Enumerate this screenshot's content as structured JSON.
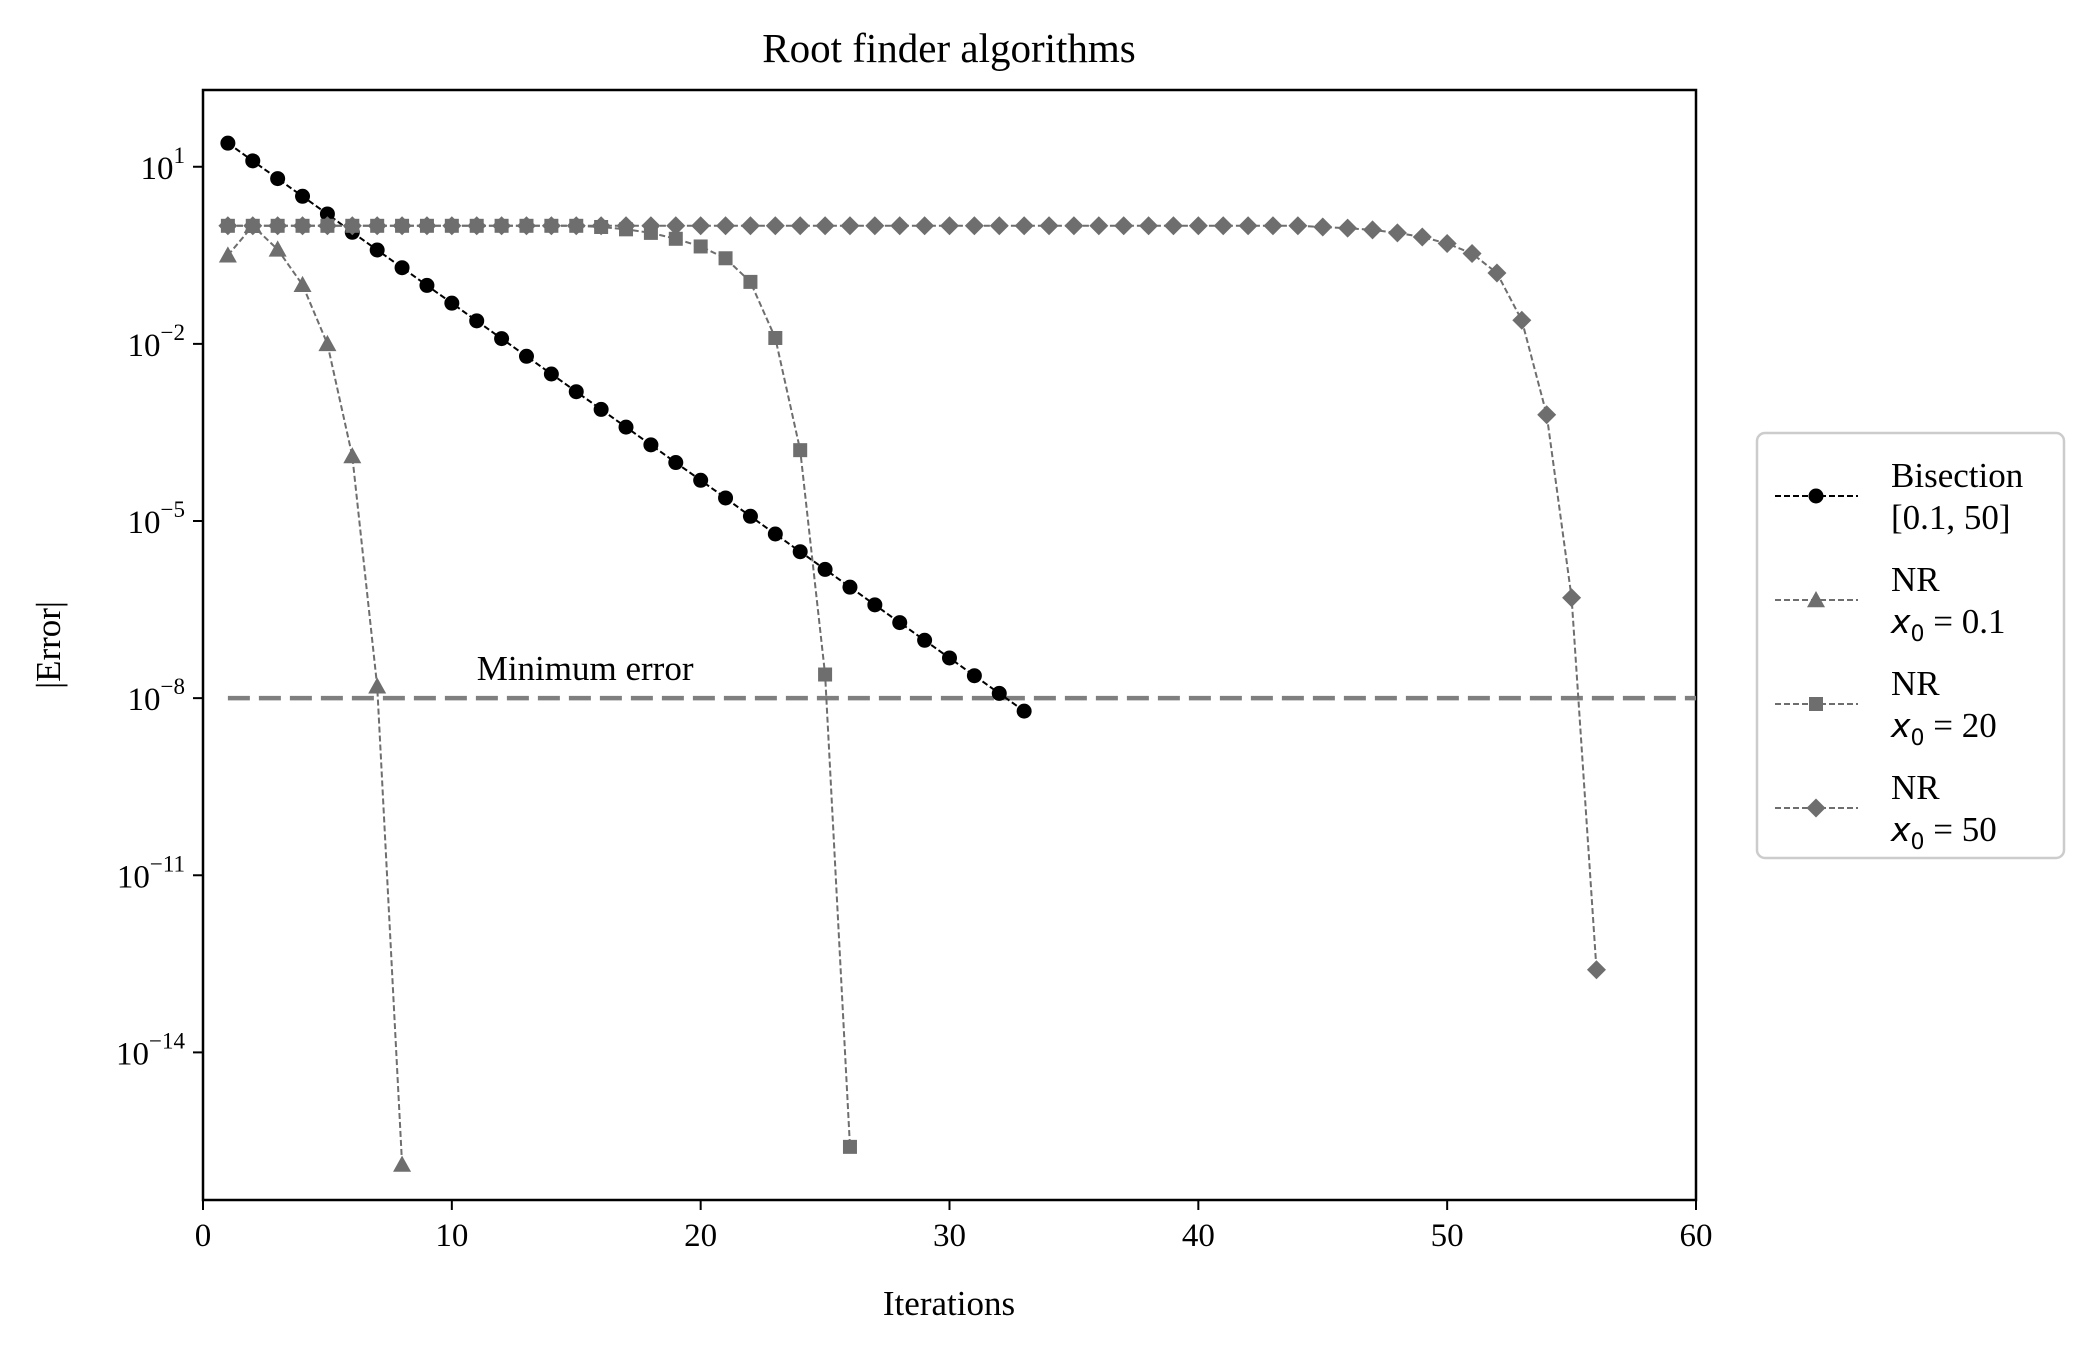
{
  "chart_data": {
    "type": "line",
    "title": "Root finder algorithms",
    "xlabel": "Iterations",
    "ylabel": "|Error|",
    "xlim": [
      0,
      60
    ],
    "ylim_log10": [
      -16.5,
      2.3
    ],
    "yscale": "log",
    "x_ticks": [
      0,
      10,
      20,
      30,
      40,
      50,
      60
    ],
    "y_ticks": [
      {
        "exp": 1,
        "label": "10",
        "sup": "1"
      },
      {
        "exp": -2,
        "label": "10",
        "sup": "−2"
      },
      {
        "exp": -5,
        "label": "10",
        "sup": "−5"
      },
      {
        "exp": -8,
        "label": "10",
        "sup": "−8"
      },
      {
        "exp": -11,
        "label": "10",
        "sup": "−11"
      },
      {
        "exp": -14,
        "label": "10",
        "sup": "−14"
      }
    ],
    "grid": false,
    "legend_position": "outside-right",
    "reference_line": {
      "y_exp": -8,
      "label": "Minimum error",
      "color": "#7f7f7f"
    },
    "series": [
      {
        "name_line1": "Bisection",
        "name_line2": "[0.1, 50]",
        "marker": "circle",
        "color": "#000000",
        "x": [
          1,
          2,
          3,
          4,
          5,
          6,
          7,
          8,
          9,
          10,
          11,
          12,
          13,
          14,
          15,
          16,
          17,
          18,
          19,
          20,
          21,
          22,
          23,
          24,
          25,
          26,
          27,
          28,
          29,
          30,
          31,
          32,
          33
        ],
        "log10_y": [
          1.4,
          1.1,
          0.8,
          0.5,
          0.2,
          -0.11,
          -0.41,
          -0.71,
          -1.01,
          -1.31,
          -1.61,
          -1.91,
          -2.21,
          -2.51,
          -2.81,
          -3.11,
          -3.41,
          -3.71,
          -4.01,
          -4.31,
          -4.61,
          -4.92,
          -5.22,
          -5.52,
          -5.82,
          -6.12,
          -6.42,
          -6.72,
          -7.02,
          -7.32,
          -7.62,
          -7.92,
          -8.22
        ]
      },
      {
        "name_line1": "NR",
        "name_math": "x",
        "name_sub": "0",
        "name_value": " = 0.1",
        "marker": "triangle",
        "color": "#6e6e6e",
        "x": [
          1,
          2,
          3,
          4,
          5,
          6,
          7,
          8
        ],
        "log10_y": [
          -0.5,
          0.0,
          -0.4,
          -1.0,
          -2.0,
          -3.9,
          -7.8,
          -15.9
        ]
      },
      {
        "name_line1": "NR",
        "name_math": "x",
        "name_sub": "0",
        "name_value": " = 20",
        "marker": "square",
        "color": "#6e6e6e",
        "x": [
          1,
          2,
          3,
          4,
          5,
          6,
          7,
          8,
          9,
          10,
          11,
          12,
          13,
          14,
          15,
          16,
          17,
          18,
          19,
          20,
          21,
          22,
          23,
          24,
          25,
          26
        ],
        "log10_y": [
          0.0,
          0.0,
          0.0,
          0.0,
          0.0,
          0.0,
          0.0,
          0.0,
          0.0,
          0.0,
          0.0,
          0.0,
          0.0,
          0.0,
          0.0,
          -0.02,
          -0.06,
          -0.12,
          -0.22,
          -0.35,
          -0.55,
          -0.95,
          -1.9,
          -3.8,
          -7.6,
          -15.6
        ]
      },
      {
        "name_line1": "NR",
        "name_math": "x",
        "name_sub": "0",
        "name_value": " = 50",
        "marker": "diamond",
        "color": "#6e6e6e",
        "x": [
          1,
          2,
          3,
          4,
          5,
          6,
          7,
          8,
          9,
          10,
          11,
          12,
          13,
          14,
          15,
          16,
          17,
          18,
          19,
          20,
          21,
          22,
          23,
          24,
          25,
          26,
          27,
          28,
          29,
          30,
          31,
          32,
          33,
          34,
          35,
          36,
          37,
          38,
          39,
          40,
          41,
          42,
          43,
          44,
          45,
          46,
          47,
          48,
          49,
          50,
          51,
          52,
          53,
          54,
          55,
          56
        ],
        "log10_y": [
          0.0,
          0.0,
          0.0,
          0.0,
          0.0,
          0.0,
          0.0,
          0.0,
          0.0,
          0.0,
          0.0,
          0.0,
          0.0,
          0.0,
          0.0,
          0.0,
          0.0,
          0.0,
          0.0,
          0.0,
          0.0,
          0.0,
          0.0,
          0.0,
          0.0,
          0.0,
          0.0,
          0.0,
          0.0,
          0.0,
          0.0,
          0.0,
          0.0,
          0.0,
          0.0,
          0.0,
          0.0,
          0.0,
          0.0,
          0.0,
          0.0,
          0.0,
          0.0,
          0.0,
          -0.02,
          -0.04,
          -0.07,
          -0.12,
          -0.19,
          -0.3,
          -0.47,
          -0.8,
          -1.6,
          -3.2,
          -6.3,
          -12.6
        ]
      }
    ]
  }
}
